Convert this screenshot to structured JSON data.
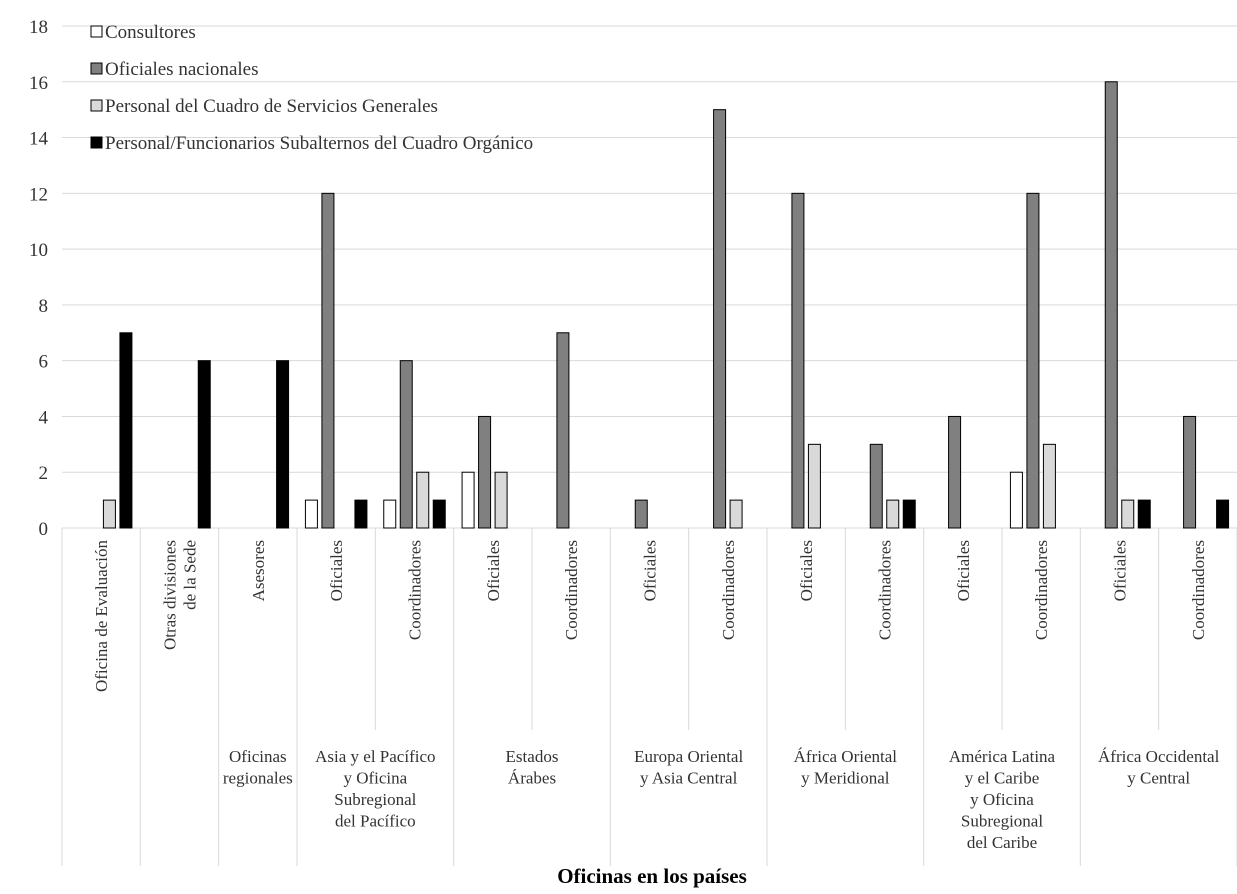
{
  "chart_data": {
    "type": "bar",
    "xlabel": "Oficinas en los países",
    "ylabel": "",
    "ylim": [
      0,
      18
    ],
    "yticks": [
      0,
      2,
      4,
      6,
      8,
      10,
      12,
      14,
      16,
      18
    ],
    "grid": "horizontal",
    "legend_position": "top-left",
    "categories": [
      "Oficina de Evaluación",
      "Otras divisiones de la Sede",
      "Asesores",
      "Oficiales",
      "Coordinadores",
      "Oficiales",
      "Coordinadores",
      "Oficiales",
      "Coordinadores",
      "Oficiales",
      "Coordinadores",
      "Oficiales",
      "Coordinadores",
      "Oficiales",
      "Coordinadores"
    ],
    "groups": [
      {
        "label": "",
        "span": 1
      },
      {
        "label": "",
        "span": 1
      },
      {
        "label": "Oficinas regionales",
        "span": 1
      },
      {
        "label": "Asia y el Pacífico y Oficina Subregional del Pacífico",
        "span": 2
      },
      {
        "label": "Estados Árabes",
        "span": 2
      },
      {
        "label": "Europa Oriental y Asia Central",
        "span": 2
      },
      {
        "label": "África Oriental y Meridional",
        "span": 2
      },
      {
        "label": "América Latina y el Caribe y Oficina Subregional del Caribe",
        "span": 2
      },
      {
        "label": "África Occidental y Central",
        "span": 2
      }
    ],
    "series": [
      {
        "name": "Consultores",
        "color": "#ffffff",
        "values": [
          0,
          0,
          0,
          1,
          1,
          2,
          0,
          0,
          0,
          0,
          0,
          0,
          2,
          0,
          0
        ]
      },
      {
        "name": "Oficiales nacionales",
        "color": "#808080",
        "values": [
          0,
          0,
          0,
          12,
          6,
          4,
          7,
          1,
          15,
          12,
          3,
          4,
          12,
          16,
          4
        ]
      },
      {
        "name": "Personal del Cuadro de Servicios Generales",
        "color": "#d9d9d9",
        "values": [
          1,
          0,
          0,
          0,
          2,
          2,
          0,
          0,
          1,
          3,
          1,
          0,
          3,
          1,
          0
        ]
      },
      {
        "name": "Personal/Funcionarios Subalternos del Cuadro Orgánico",
        "color": "#000000",
        "values": [
          7,
          6,
          6,
          1,
          1,
          0,
          0,
          0,
          0,
          0,
          1,
          0,
          0,
          1,
          1
        ]
      }
    ]
  }
}
